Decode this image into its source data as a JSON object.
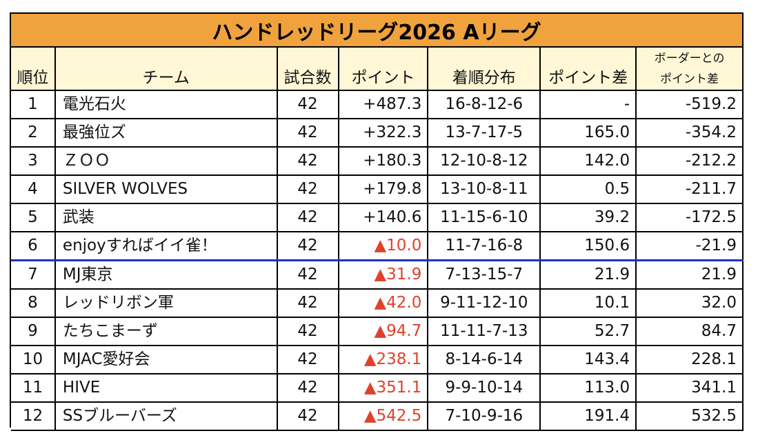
{
  "title": "ハンドレッドリーグ2026 Aリーグ",
  "headers": {
    "rank": "順位",
    "team": "チーム",
    "games": "試合数",
    "points": "ポイント",
    "distribution": "着順分布",
    "point_diff": "ポイント差",
    "border_diff_line1": "ボーダーとの",
    "border_diff_line2": "ポイント差"
  },
  "rows": [
    {
      "rank": "1",
      "team": "電光石火",
      "games": "42",
      "points": "+487.3",
      "negative": false,
      "distribution": "16-8-12-6",
      "point_diff": "-",
      "border_diff": "-519.2"
    },
    {
      "rank": "2",
      "team": "最強位ズ",
      "games": "42",
      "points": "+322.3",
      "negative": false,
      "distribution": "13-7-17-5",
      "point_diff": "165.0",
      "border_diff": "-354.2"
    },
    {
      "rank": "3",
      "team": "ＺＯＯ",
      "games": "42",
      "points": "+180.3",
      "negative": false,
      "distribution": "12-10-8-12",
      "point_diff": "142.0",
      "border_diff": "-212.2"
    },
    {
      "rank": "4",
      "team": "SILVER WOLVES",
      "games": "42",
      "points": "+179.8",
      "negative": false,
      "distribution": "13-10-8-11",
      "point_diff": "0.5",
      "border_diff": "-211.7"
    },
    {
      "rank": "5",
      "team": "武装",
      "games": "42",
      "points": "+140.6",
      "negative": false,
      "distribution": "11-15-6-10",
      "point_diff": "39.2",
      "border_diff": "-172.5"
    },
    {
      "rank": "6",
      "team": "enjoyすればイイ雀！",
      "games": "42",
      "points": "▲10.0",
      "negative": true,
      "distribution": "11-7-16-8",
      "point_diff": "150.6",
      "border_diff": "-21.9"
    },
    {
      "rank": "7",
      "team": "MJ東京",
      "games": "42",
      "points": "▲31.9",
      "negative": true,
      "distribution": "7-13-15-7",
      "point_diff": "21.9",
      "border_diff": "21.9"
    },
    {
      "rank": "8",
      "team": "レッドリボン軍",
      "games": "42",
      "points": "▲42.0",
      "negative": true,
      "distribution": "9-11-12-10",
      "point_diff": "10.1",
      "border_diff": "32.0"
    },
    {
      "rank": "9",
      "team": "たちこまーず",
      "games": "42",
      "points": "▲94.7",
      "negative": true,
      "distribution": "11-11-7-13",
      "point_diff": "52.7",
      "border_diff": "84.7"
    },
    {
      "rank": "10",
      "team": "MJAC愛好会",
      "games": "42",
      "points": "▲238.1",
      "negative": true,
      "distribution": "8-14-6-14",
      "point_diff": "143.4",
      "border_diff": "228.1"
    },
    {
      "rank": "11",
      "team": "HIVE",
      "games": "42",
      "points": "▲351.1",
      "negative": true,
      "distribution": "9-9-10-14",
      "point_diff": "113.0",
      "border_diff": "341.1"
    },
    {
      "rank": "12",
      "team": "SSブルーバーズ",
      "games": "42",
      "points": "▲542.5",
      "negative": true,
      "distribution": "7-10-9-16",
      "point_diff": "191.4",
      "border_diff": "532.5"
    }
  ],
  "border_after_rank": "6",
  "colors": {
    "title_bg": "#F0A23D",
    "header_bg": "#FFF7D6",
    "negative_text": "#E0412B",
    "border_line": "#1F2FB8"
  }
}
